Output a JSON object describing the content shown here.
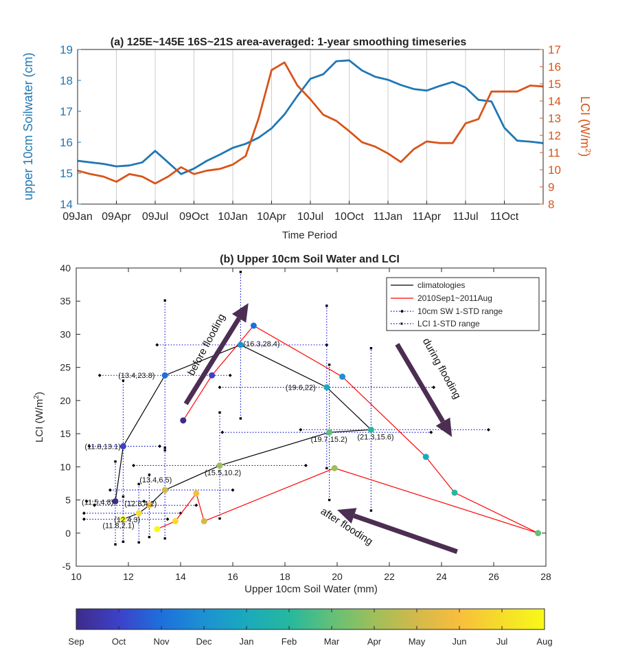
{
  "colors": {
    "sw_line": "#1f77b4",
    "lci_line": "#d95319",
    "clim": "#000000",
    "flood": "#ff0000",
    "range": "#0000cc",
    "arrow": "#4b2e52",
    "grid": "#cccccc"
  },
  "chart_data": [
    {
      "type": "line",
      "title": "(a) 125E~145E 16S~21S area-averaged: 1-year smoothing timeseries",
      "xlabel": "Time Period",
      "ylabel_left": "upper 10cm Soilwater (cm)",
      "ylabel_right": "LCI (W/m",
      "ylabel_right_sup": "2",
      "ylabel_right_close": ")",
      "xlim": [
        0,
        36
      ],
      "ylim_left": [
        14,
        19
      ],
      "ylim_right": [
        8,
        17
      ],
      "y_ticks_left": [
        14,
        15,
        16,
        17,
        18,
        19
      ],
      "y_ticks_right": [
        8,
        9,
        10,
        11,
        12,
        13,
        14,
        15,
        16,
        17
      ],
      "x_ticks": [
        0,
        3,
        6,
        9,
        12,
        15,
        18,
        21,
        24,
        27,
        30,
        33
      ],
      "x_tick_labels": [
        "09Jan",
        "09Apr",
        "09Jul",
        "09Oct",
        "10Jan",
        "10Apr",
        "10Jul",
        "10Oct",
        "11Jan",
        "11Apr",
        "11Jul",
        "11Oct"
      ],
      "grid": "vertical",
      "series": [
        {
          "axis": "left",
          "x": [
            0,
            1,
            2,
            3,
            4,
            5,
            6,
            7,
            8,
            9,
            10,
            11,
            12,
            13,
            14,
            15,
            16,
            17,
            18,
            19,
            20,
            21,
            22,
            23,
            24,
            25,
            26,
            27,
            28,
            29,
            30,
            31,
            32,
            33,
            34,
            35,
            36
          ],
          "values": [
            15.4,
            15.35,
            15.3,
            15.22,
            15.25,
            15.35,
            15.72,
            15.35,
            14.97,
            15.15,
            15.4,
            15.6,
            15.82,
            15.95,
            16.15,
            16.45,
            16.9,
            17.5,
            18.05,
            18.2,
            18.62,
            18.65,
            18.32,
            18.12,
            18.02,
            17.85,
            17.72,
            17.67,
            17.82,
            17.95,
            17.77,
            17.37,
            17.32,
            16.47,
            16.05,
            16.02,
            15.97
          ]
        },
        {
          "axis": "right",
          "x": [
            0,
            1,
            2,
            3,
            4,
            5,
            6,
            7,
            8,
            9,
            10,
            11,
            12,
            13,
            14,
            15,
            16,
            17,
            18,
            19,
            20,
            21,
            22,
            23,
            24,
            25,
            26,
            27,
            28,
            29,
            30,
            31,
            32,
            33,
            34,
            35,
            36
          ],
          "values": [
            9.95,
            9.75,
            9.6,
            9.3,
            9.75,
            9.6,
            9.2,
            9.6,
            10.15,
            9.75,
            9.95,
            10.05,
            10.3,
            10.8,
            13.0,
            15.8,
            16.25,
            14.9,
            14.1,
            13.2,
            12.85,
            12.25,
            11.6,
            11.35,
            10.95,
            10.45,
            11.2,
            11.65,
            11.55,
            11.55,
            12.7,
            12.95,
            14.55,
            14.55,
            14.55,
            14.9,
            14.85
          ]
        }
      ]
    },
    {
      "type": "scatter",
      "title": "(b) Upper 10cm Soil Water and LCI",
      "xlabel": "Upper 10cm Soil Water (mm)",
      "ylabel": "LCI (W/m",
      "ylabel_sup": "2",
      "ylabel_close": ")",
      "xlim": [
        10,
        28
      ],
      "ylim": [
        -5,
        40
      ],
      "x_ticks": [
        10,
        12,
        14,
        16,
        18,
        20,
        22,
        24,
        26,
        28
      ],
      "y_ticks": [
        -5,
        0,
        5,
        10,
        15,
        20,
        25,
        30,
        35,
        40
      ],
      "legend": {
        "position": "top-right",
        "items": [
          "climatologies",
          "2010Sep1~2011Aug",
          "10cm SW 1-STD range",
          "LCI 1-STD range"
        ]
      },
      "climatology": {
        "points": [
          {
            "x": 11.5,
            "y": 4.8,
            "month": 0
          },
          {
            "x": 11.8,
            "y": 13.1,
            "month": 1
          },
          {
            "x": 13.4,
            "y": 23.8,
            "month": 2
          },
          {
            "x": 16.3,
            "y": 28.4,
            "month": 3
          },
          {
            "x": 19.6,
            "y": 22,
            "month": 4
          },
          {
            "x": 21.3,
            "y": 15.6,
            "month": 5
          },
          {
            "x": 19.7,
            "y": 15.2,
            "month": 6
          },
          {
            "x": 15.5,
            "y": 10.2,
            "month": 7
          },
          {
            "x": 13.4,
            "y": 6.5,
            "month": 8
          },
          {
            "x": 12.8,
            "y": 4.2,
            "month": 9
          },
          {
            "x": 12.4,
            "y": 3,
            "month": 10
          },
          {
            "x": 11.8,
            "y": 2.1,
            "month": 11
          }
        ],
        "sw_std": [
          [
            10.4,
            12.6
          ],
          [
            10.5,
            13.2
          ],
          [
            10.9,
            15.9
          ],
          [
            13.1,
            19.6
          ],
          [
            15.5,
            23.7
          ],
          [
            18.6,
            25.8
          ],
          [
            15.6,
            23.6
          ],
          [
            12.2,
            18.8
          ],
          [
            11.3,
            16.0
          ],
          [
            10.7,
            14.6
          ],
          [
            10.3,
            14.0
          ],
          [
            10.3,
            13.5
          ]
        ],
        "lci_std": [
          [
            -1.7,
            10.8
          ],
          [
            -1.3,
            23.0
          ],
          [
            12.5,
            35.1
          ],
          [
            17.3,
            39.4
          ],
          [
            9.8,
            34.3
          ],
          [
            3.4,
            27.9
          ],
          [
            5.0,
            25.4
          ],
          [
            2.2,
            18.2
          ],
          [
            -0.8,
            12.9
          ],
          [
            -0.6,
            8.8
          ],
          [
            -1.4,
            7.4
          ],
          [
            -1.3,
            5.5
          ]
        ],
        "labels": [
          "(11.5,4.8)",
          "(11.8,13.1)",
          "(13.4,23.8)",
          "(16.3,28.4)",
          "(19.6,22)",
          "(21.3,15.6)",
          "(19.7,15.2)",
          "(15.5,10.2)",
          "(13.4,6.5)",
          "(12.8,4.2)",
          "(12.4,3)",
          "(11.8,2.1)"
        ]
      },
      "flood_year": {
        "points": [
          {
            "x": 14.1,
            "y": 17.0,
            "month": 0
          },
          {
            "x": 15.2,
            "y": 23.8,
            "month": 1
          },
          {
            "x": 16.8,
            "y": 31.3,
            "month": 2
          },
          {
            "x": 20.2,
            "y": 23.6,
            "month": 3
          },
          {
            "x": 23.4,
            "y": 11.5,
            "month": 4
          },
          {
            "x": 24.5,
            "y": 6.1,
            "month": 5
          },
          {
            "x": 27.7,
            "y": 0.0,
            "month": 6
          },
          {
            "x": 19.9,
            "y": 9.8,
            "month": 7
          },
          {
            "x": 14.9,
            "y": 1.8,
            "month": 8
          },
          {
            "x": 14.6,
            "y": 6.0,
            "month": 9
          },
          {
            "x": 13.8,
            "y": 1.8,
            "month": 10
          },
          {
            "x": 13.1,
            "y": 0.6,
            "month": 11
          }
        ]
      },
      "annotations": [
        {
          "text": "before flooding",
          "x1": 14.2,
          "y1": 19.5,
          "x2": 16.6,
          "y2": 34.7,
          "tx": 15.1,
          "ty": 28.2,
          "angle": -62
        },
        {
          "text": "during flooding",
          "x1": 22.3,
          "y1": 28.5,
          "x2": 24.4,
          "y2": 14.5,
          "tx": 23.9,
          "ty": 24.6,
          "angle": 61
        },
        {
          "text": "after flooding",
          "x1": 24.6,
          "y1": -2.8,
          "x2": 20.0,
          "y2": 3.5,
          "tx": 20.3,
          "ty": 0.6,
          "angle": 33
        }
      ]
    },
    {
      "type": "colorbar",
      "labels": [
        "Sep",
        "Oct",
        "Nov",
        "Dec",
        "Jan",
        "Feb",
        "Mar",
        "Apr",
        "May",
        "Jun",
        "Jul",
        "Aug"
      ],
      "colormap": [
        "#3e2b89",
        "#3d41c9",
        "#1d70dc",
        "#1d91d3",
        "#1aaabc",
        "#26b89d",
        "#62c078",
        "#9fbf5a",
        "#d3b94a",
        "#f8be3d",
        "#f5dd2a",
        "#f9f919"
      ]
    }
  ]
}
